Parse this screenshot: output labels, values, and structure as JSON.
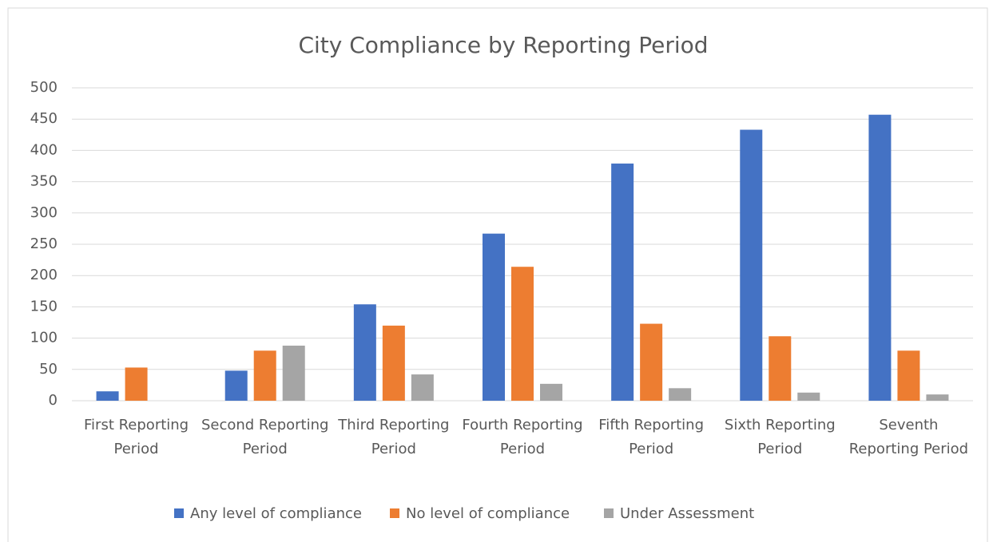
{
  "chart_data": {
    "type": "bar",
    "title": "City Compliance by Reporting Period",
    "categories": [
      "First Reporting Period",
      "Second Reporting Period",
      "Third Reporting Period",
      "Fourth Reporting Period",
      "Fifth Reporting Period",
      "Sixth Reporting Period",
      "Seventh Reporting Period"
    ],
    "series": [
      {
        "name": "Any level of compliance",
        "color": "#4472c4",
        "values": [
          15,
          48,
          154,
          267,
          379,
          433,
          457
        ]
      },
      {
        "name": "No level of compliance",
        "color": "#ed7d31",
        "values": [
          53,
          80,
          120,
          214,
          123,
          103,
          80
        ]
      },
      {
        "name": "Under Assessment",
        "color": "#a5a5a5",
        "values": [
          0,
          88,
          42,
          27,
          20,
          13,
          10
        ]
      }
    ],
    "ylim": [
      0,
      500
    ],
    "yticks": [
      0,
      50,
      100,
      150,
      200,
      250,
      300,
      350,
      400,
      450,
      500
    ],
    "grid": true,
    "legend": "bottom"
  }
}
